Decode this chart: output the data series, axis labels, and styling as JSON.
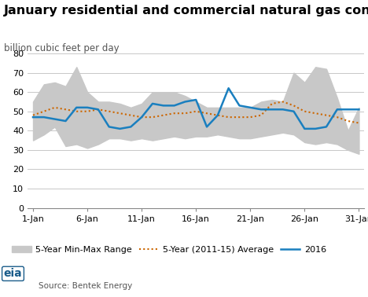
{
  "title": "January residential and commercial natural gas consumption",
  "subtitle": "billion cubic feet per day",
  "source": "Source: Bentek Energy",
  "x_labels": [
    "1-Jan",
    "6-Jan",
    "11-Jan",
    "16-Jan",
    "21-Jan",
    "26-Jan",
    "31-Jan"
  ],
  "x_ticks": [
    0,
    5,
    10,
    15,
    20,
    25,
    30
  ],
  "ylim": [
    0,
    80
  ],
  "yticks": [
    0,
    10,
    20,
    30,
    40,
    50,
    60,
    70,
    80
  ],
  "days": [
    0,
    1,
    2,
    3,
    4,
    5,
    6,
    7,
    8,
    9,
    10,
    11,
    12,
    13,
    14,
    15,
    16,
    17,
    18,
    19,
    20,
    21,
    22,
    23,
    24,
    25,
    26,
    27,
    28,
    29,
    30
  ],
  "range_min": [
    35,
    38,
    42,
    32,
    33,
    31,
    33,
    36,
    36,
    35,
    36,
    35,
    36,
    37,
    36,
    37,
    37,
    38,
    37,
    36,
    36,
    37,
    38,
    39,
    38,
    34,
    33,
    34,
    33,
    30,
    28
  ],
  "range_max": [
    55,
    64,
    65,
    63,
    73,
    60,
    55,
    55,
    54,
    52,
    54,
    60,
    60,
    60,
    58,
    55,
    52,
    52,
    52,
    52,
    52,
    55,
    56,
    55,
    70,
    65,
    73,
    72,
    57,
    40,
    52
  ],
  "avg": [
    48,
    50,
    52,
    51,
    50,
    50,
    51,
    50,
    49,
    48,
    47,
    47,
    48,
    49,
    49,
    50,
    49,
    48,
    47,
    47,
    47,
    48,
    54,
    55,
    53,
    50,
    49,
    48,
    47,
    45,
    44
  ],
  "line2016": [
    47,
    47,
    46,
    45,
    52,
    52,
    51,
    42,
    41,
    42,
    47,
    54,
    53,
    53,
    55,
    56,
    42,
    48,
    62,
    53,
    52,
    51,
    51,
    51,
    50,
    41,
    41,
    42,
    51,
    51,
    51
  ],
  "range_color": "#c8c8c8",
  "avg_color": "#cc6600",
  "line2016_color": "#1a7fbf",
  "background_color": "#ffffff",
  "grid_color": "#c8c8c8",
  "title_fontsize": 11.5,
  "subtitle_fontsize": 8.5,
  "axis_fontsize": 8,
  "legend_fontsize": 8,
  "source_fontsize": 7.5,
  "legend_label_range": "5-Year Min-Max Range",
  "legend_label_avg": "5-Year (2011-15) Average",
  "legend_label_2016": "2016"
}
